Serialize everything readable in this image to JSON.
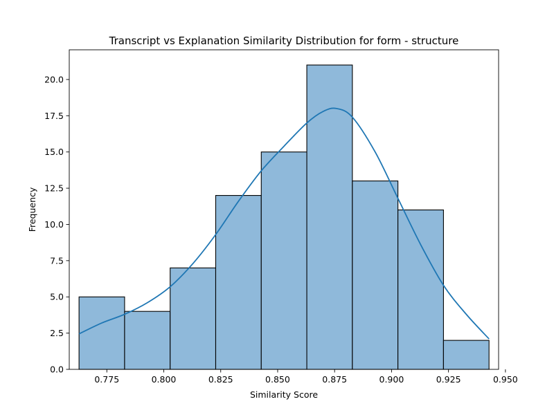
{
  "chart_data": {
    "type": "bar",
    "subtype": "histogram-with-kde",
    "title": "Transcript vs Explanation Similarity Distribution for form - structure",
    "xlabel": "Similarity Score",
    "ylabel": "Frequency",
    "xlim": [
      0.7585,
      0.947
    ],
    "ylim": [
      0,
      22.05
    ],
    "xticks": [
      0.775,
      0.8,
      0.825,
      0.85,
      0.875,
      0.9,
      0.925,
      0.95
    ],
    "xtick_labels": [
      "0.775",
      "0.800",
      "0.825",
      "0.850",
      "0.875",
      "0.900",
      "0.925",
      "0.950"
    ],
    "yticks": [
      0.0,
      2.5,
      5.0,
      7.5,
      10.0,
      12.5,
      15.0,
      17.5,
      20.0
    ],
    "ytick_labels": [
      "0.0",
      "2.5",
      "5.0",
      "7.5",
      "10.0",
      "12.5",
      "15.0",
      "17.5",
      "20.0"
    ],
    "bins": [
      {
        "start": 0.7628,
        "end": 0.7828,
        "count": 5
      },
      {
        "start": 0.7828,
        "end": 0.8028,
        "count": 4
      },
      {
        "start": 0.8028,
        "end": 0.8228,
        "count": 7
      },
      {
        "start": 0.8228,
        "end": 0.8428,
        "count": 12
      },
      {
        "start": 0.8428,
        "end": 0.8628,
        "count": 15
      },
      {
        "start": 0.8628,
        "end": 0.8828,
        "count": 21
      },
      {
        "start": 0.8828,
        "end": 0.9028,
        "count": 13
      },
      {
        "start": 0.9028,
        "end": 0.9228,
        "count": 11
      },
      {
        "start": 0.9228,
        "end": 0.9428,
        "count": 2
      }
    ],
    "kde": {
      "x": [
        0.7628,
        0.7728,
        0.7828,
        0.7928,
        0.8028,
        0.8128,
        0.8228,
        0.8328,
        0.8428,
        0.8528,
        0.8628,
        0.87,
        0.8758,
        0.8828,
        0.8928,
        0.9028,
        0.9128,
        0.9228,
        0.9328,
        0.9428
      ],
      "y": [
        2.45,
        3.2,
        3.8,
        4.6,
        5.7,
        7.3,
        9.3,
        11.6,
        13.7,
        15.4,
        17.0,
        17.8,
        18.0,
        17.4,
        15.0,
        11.8,
        8.6,
        5.8,
        3.8,
        2.1
      ]
    },
    "colors": {
      "bar_fill": "#8fb9da",
      "bar_edge": "#000000",
      "kde_line": "#1f77b4"
    },
    "grid": false,
    "legend": "none"
  }
}
